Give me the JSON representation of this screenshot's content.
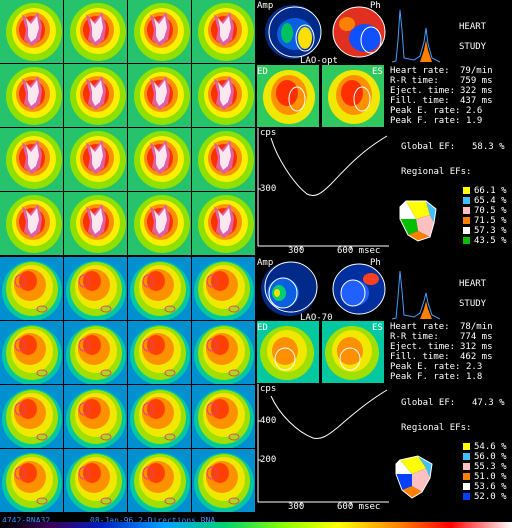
{
  "study_title_line1": "HEART",
  "study_title_line2": "STUDY",
  "top": {
    "view": "LAO-opt",
    "amp_label": "Amp",
    "ph_label": "Ph",
    "ed_label": "ED",
    "es_label": "ES",
    "stats": [
      {
        "label": "Heart rate:",
        "value": "79/min"
      },
      {
        "label": "R-R time:",
        "value": "759 ms"
      },
      {
        "label": "Eject. time:",
        "value": "322 ms"
      },
      {
        "label": "Fill. time:",
        "value": "437 ms"
      },
      {
        "label": "Peak E. rate:",
        "value": "2.6"
      },
      {
        "label": "Peak F. rate:",
        "value": "1.9"
      }
    ],
    "global_ef_label": "Global EF:",
    "global_ef": "58.3 %",
    "regional_label": "Regional EFs:",
    "regional": [
      {
        "value": "66.1 %",
        "color": "#ffff00"
      },
      {
        "value": "65.4 %",
        "color": "#40c0ff"
      },
      {
        "value": "70.5 %",
        "color": "#ffc0c0"
      },
      {
        "value": "71.5 %",
        "color": "#ff8000"
      },
      {
        "value": "57.3 %",
        "color": "#ffffff"
      },
      {
        "value": "43.5 %",
        "color": "#00c000"
      }
    ],
    "curve": {
      "y_label": "cps",
      "y_ticks": [
        "300"
      ],
      "x_ticks": [
        "300",
        "600 msec"
      ]
    }
  },
  "bottom": {
    "view": "LAO-70",
    "amp_label": "Amp",
    "ph_label": "Ph",
    "ed_label": "ED",
    "es_label": "ES",
    "stats": [
      {
        "label": "Heart rate:",
        "value": "78/min"
      },
      {
        "label": "R-R time:",
        "value": "774 ms"
      },
      {
        "label": "Eject. time:",
        "value": "312 ms"
      },
      {
        "label": "Fill. time:",
        "value": "462 ms"
      },
      {
        "label": "Peak E. rate:",
        "value": "2.3"
      },
      {
        "label": "Peak F. rate:",
        "value": "1.8"
      }
    ],
    "global_ef_label": "Global EF:",
    "global_ef": "47.3 %",
    "regional_label": "Regional EFs:",
    "regional": [
      {
        "value": "54.6 %",
        "color": "#ffff00"
      },
      {
        "value": "56.0 %",
        "color": "#40c0ff"
      },
      {
        "value": "55.3 %",
        "color": "#ffc0c0"
      },
      {
        "value": "51.0 %",
        "color": "#ff8000"
      },
      {
        "value": "53.6 %",
        "color": "#ffffff"
      },
      {
        "value": "52.0 %",
        "color": "#0040ff"
      }
    ],
    "curve": {
      "y_label": "cps",
      "y_ticks": [
        "400",
        "200"
      ],
      "x_ticks": [
        "300",
        "600 msec"
      ]
    }
  },
  "footer": {
    "patient_id": "4742-RNA32",
    "date_desc": "08-Jan-96 2-Directions RNA"
  }
}
